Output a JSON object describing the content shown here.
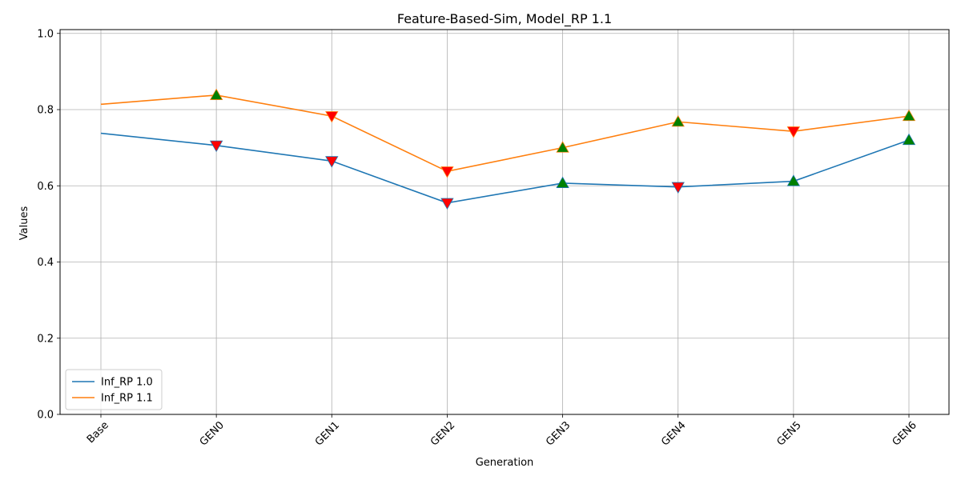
{
  "chart_data": {
    "type": "line",
    "title": "Feature-Based-Sim, Model_RP 1.1",
    "xlabel": "Generation",
    "ylabel": "Values",
    "categories": [
      "Base",
      "GEN0",
      "GEN1",
      "GEN2",
      "GEN3",
      "GEN4",
      "GEN5",
      "GEN6"
    ],
    "ylim": [
      0,
      1.01
    ],
    "yticks": [
      "0.0",
      "0.2",
      "0.4",
      "0.6",
      "0.8",
      "1.0"
    ],
    "ytick_values": [
      0,
      0.2,
      0.4,
      0.6,
      0.8,
      1.0
    ],
    "grid": true,
    "legend_position": "lower-left",
    "series": [
      {
        "name": "Inf_RP 1.0",
        "color": "#1f77b4",
        "values": [
          0.738,
          0.706,
          0.665,
          0.555,
          0.607,
          0.597,
          0.612,
          0.72
        ],
        "markers": [
          null,
          "down",
          "down",
          "down",
          "up",
          "down",
          "up",
          "up"
        ]
      },
      {
        "name": "Inf_RP 1.1",
        "color": "#ff7f0e",
        "values": [
          0.814,
          0.838,
          0.783,
          0.638,
          0.7,
          0.768,
          0.743,
          0.783
        ],
        "markers": [
          null,
          "up",
          "down",
          "down",
          "up",
          "up",
          "down",
          "up"
        ]
      }
    ],
    "marker_colors": {
      "up": "#008000",
      "down": "#ff0000"
    }
  }
}
